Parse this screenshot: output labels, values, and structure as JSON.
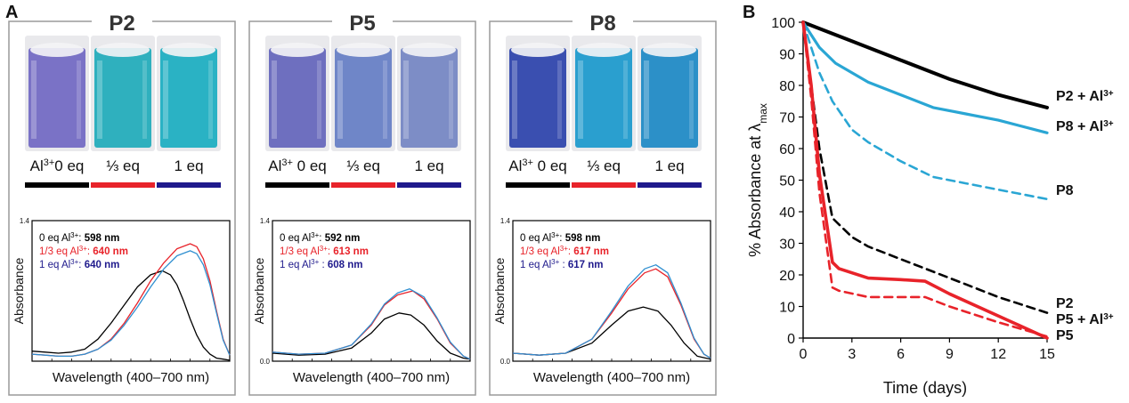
{
  "panel_a": {
    "label": "A",
    "groups": [
      {
        "name": "P2",
        "conditions": [
          {
            "label_pre": "Al",
            "label_sup": "3+",
            "label_post": "0 eq",
            "color": "#000000"
          },
          {
            "label_pre": "⅓ eq",
            "label_sup": "",
            "label_post": "",
            "color": "#e8232a"
          },
          {
            "label_pre": "1 eq",
            "label_sup": "",
            "label_post": "",
            "color": "#1f1a8c"
          }
        ],
        "cuvette_colors": [
          "#7a72c6",
          "#2fb0be",
          "#2ab2c4"
        ],
        "legend": [
          {
            "prefix": "0   eq Al",
            "sup": "3+",
            "sep": ": ",
            "value": "598 nm",
            "color": "#000000"
          },
          {
            "prefix": "1/3 eq Al",
            "sup": "3+",
            "sep": ": ",
            "value": "640 nm",
            "color": "#e8232a"
          },
          {
            "prefix": "1   eq Al",
            "sup": "3+",
            "sep": ": ",
            "value": "640 nm",
            "color": "#1f1a8c"
          }
        ]
      },
      {
        "name": "P5",
        "conditions": [
          {
            "label_pre": "Al",
            "label_sup": "3+",
            "label_post": " 0 eq",
            "color": "#000000"
          },
          {
            "label_pre": "⅓ eq",
            "label_sup": "",
            "label_post": "",
            "color": "#e8232a"
          },
          {
            "label_pre": "1 eq",
            "label_sup": "",
            "label_post": "",
            "color": "#1f1a8c"
          }
        ],
        "cuvette_colors": [
          "#6e6fbf",
          "#6f86c8",
          "#7d8dc6"
        ],
        "legend": [
          {
            "prefix": "0   eq Al",
            "sup": "3+",
            "sep": ": ",
            "value": "592 nm",
            "color": "#000000"
          },
          {
            "prefix": "1/3 eq Al",
            "sup": "3+",
            "sep": ": ",
            "value": "613 nm",
            "color": "#e8232a"
          },
          {
            "prefix": "1   eq Al",
            "sup": "3+",
            "sep": " : ",
            "value": "608 nm",
            "color": "#1f1a8c"
          }
        ]
      },
      {
        "name": "P8",
        "conditions": [
          {
            "label_pre": "Al",
            "label_sup": "3+",
            "label_post": " 0 eq",
            "color": "#000000"
          },
          {
            "label_pre": "⅓ eq",
            "label_sup": "",
            "label_post": "",
            "color": "#e8232a"
          },
          {
            "label_pre": "1 eq",
            "label_sup": "",
            "label_post": "",
            "color": "#1f1a8c"
          }
        ],
        "cuvette_colors": [
          "#3a4fb0",
          "#2a9fcf",
          "#2c90c8"
        ],
        "legend": [
          {
            "prefix": "0   eq Al",
            "sup": "3+",
            "sep": ": ",
            "value": "598 nm",
            "color": "#000000"
          },
          {
            "prefix": "1/3 eq Al",
            "sup": "3+",
            "sep": ": ",
            "value": "617 nm",
            "color": "#e8232a"
          },
          {
            "prefix": "1  eq Al",
            "sup": "3+",
            "sep": " : ",
            "value": "617 nm",
            "color": "#1f1a8c"
          }
        ]
      }
    ]
  },
  "panel_b": {
    "label": "B",
    "ylabel_pre": "% Absorbance at λ",
    "ylabel_sub": "max",
    "xlabel": "Time (days)"
  },
  "chart_data": [
    {
      "type": "line",
      "id": "P2",
      "xlabel": "Wavelength (400–700 nm)",
      "ylabel": "Absorbance",
      "xlim": [
        400,
        700
      ],
      "ylim": [
        0.0,
        1.4
      ],
      "yticks": [
        "1.4"
      ],
      "series": [
        {
          "color": "#000000",
          "x": [
            400,
            420,
            440,
            460,
            480,
            500,
            520,
            540,
            560,
            580,
            598,
            610,
            620,
            630,
            640,
            650,
            660,
            670,
            680,
            690,
            700
          ],
          "y": [
            0.1,
            0.09,
            0.08,
            0.09,
            0.12,
            0.22,
            0.38,
            0.56,
            0.74,
            0.86,
            0.9,
            0.86,
            0.76,
            0.6,
            0.42,
            0.26,
            0.14,
            0.07,
            0.03,
            0.02,
            0.01
          ]
        },
        {
          "color": "#e8232a",
          "x": [
            400,
            420,
            440,
            460,
            480,
            500,
            520,
            540,
            560,
            580,
            600,
            620,
            640,
            650,
            660,
            670,
            680,
            690,
            700
          ],
          "y": [
            0.07,
            0.06,
            0.05,
            0.05,
            0.07,
            0.12,
            0.22,
            0.38,
            0.58,
            0.8,
            0.98,
            1.12,
            1.17,
            1.14,
            1.02,
            0.8,
            0.5,
            0.22,
            0.06
          ]
        },
        {
          "color": "#2f8fd0",
          "x": [
            400,
            420,
            440,
            460,
            480,
            500,
            520,
            540,
            560,
            580,
            600,
            620,
            640,
            650,
            660,
            670,
            680,
            690,
            700
          ],
          "y": [
            0.07,
            0.06,
            0.05,
            0.05,
            0.07,
            0.12,
            0.21,
            0.36,
            0.54,
            0.74,
            0.92,
            1.05,
            1.1,
            1.07,
            0.96,
            0.76,
            0.48,
            0.21,
            0.06
          ]
        }
      ]
    },
    {
      "type": "line",
      "id": "P5",
      "xlabel": "Wavelength (400–700 nm)",
      "ylabel": "Absorbance",
      "xlim": [
        400,
        700
      ],
      "ylim": [
        0.0,
        1.4
      ],
      "yticks": [
        "1.4",
        "0.0"
      ],
      "series": [
        {
          "color": "#000000",
          "x": [
            400,
            440,
            480,
            520,
            550,
            570,
            592,
            610,
            630,
            650,
            670,
            690,
            700
          ],
          "y": [
            0.08,
            0.06,
            0.07,
            0.13,
            0.28,
            0.42,
            0.48,
            0.46,
            0.36,
            0.2,
            0.08,
            0.03,
            0.02
          ]
        },
        {
          "color": "#e8232a",
          "x": [
            400,
            440,
            480,
            520,
            550,
            570,
            590,
            613,
            630,
            650,
            670,
            690,
            700
          ],
          "y": [
            0.09,
            0.07,
            0.08,
            0.16,
            0.36,
            0.56,
            0.66,
            0.7,
            0.62,
            0.42,
            0.18,
            0.05,
            0.02
          ]
        },
        {
          "color": "#2f8fd0",
          "x": [
            400,
            440,
            480,
            520,
            550,
            570,
            590,
            608,
            630,
            650,
            670,
            690,
            700
          ],
          "y": [
            0.09,
            0.07,
            0.08,
            0.16,
            0.37,
            0.57,
            0.68,
            0.72,
            0.64,
            0.43,
            0.19,
            0.05,
            0.02
          ]
        }
      ]
    },
    {
      "type": "line",
      "id": "P8",
      "xlabel": "Wavelength (400–700 nm)",
      "ylabel": "Absorbance",
      "xlim": [
        400,
        700
      ],
      "ylim": [
        0.0,
        1.4
      ],
      "yticks": [
        "1.4",
        "0.0"
      ],
      "series": [
        {
          "color": "#000000",
          "x": [
            400,
            440,
            480,
            520,
            550,
            575,
            598,
            620,
            640,
            660,
            680,
            700
          ],
          "y": [
            0.08,
            0.06,
            0.08,
            0.18,
            0.36,
            0.5,
            0.54,
            0.5,
            0.36,
            0.18,
            0.05,
            0.02
          ]
        },
        {
          "color": "#e8232a",
          "x": [
            400,
            440,
            480,
            520,
            550,
            575,
            600,
            617,
            635,
            655,
            675,
            690,
            700
          ],
          "y": [
            0.08,
            0.06,
            0.08,
            0.22,
            0.48,
            0.72,
            0.88,
            0.92,
            0.84,
            0.56,
            0.22,
            0.07,
            0.03
          ]
        },
        {
          "color": "#2f8fd0",
          "x": [
            400,
            440,
            480,
            520,
            550,
            575,
            600,
            617,
            635,
            655,
            675,
            690,
            700
          ],
          "y": [
            0.08,
            0.06,
            0.08,
            0.22,
            0.5,
            0.75,
            0.92,
            0.96,
            0.88,
            0.58,
            0.23,
            0.07,
            0.03
          ]
        }
      ]
    },
    {
      "type": "line",
      "id": "B",
      "xlabel": "Time (days)",
      "ylabel": "% Absorbance at λmax",
      "xlim": [
        0,
        15
      ],
      "ylim": [
        0,
        100
      ],
      "xticks": [
        0,
        3,
        6,
        9,
        12,
        15
      ],
      "yticks": [
        0,
        10,
        20,
        30,
        40,
        50,
        60,
        70,
        80,
        90,
        100
      ],
      "series": [
        {
          "name": "P2 + Al3+",
          "color": "#000000",
          "dash": false,
          "width": 4,
          "x": [
            0,
            1,
            3,
            6,
            9,
            12,
            15
          ],
          "y": [
            100,
            98,
            94,
            88,
            82,
            77,
            73
          ]
        },
        {
          "name": "P8 + Al3+",
          "color": "#2aa6d4",
          "dash": false,
          "width": 3.2,
          "x": [
            0,
            0.5,
            1,
            2,
            4,
            6,
            8,
            10,
            12,
            15
          ],
          "y": [
            100,
            96,
            92,
            87,
            81,
            77,
            73,
            71,
            69,
            65
          ]
        },
        {
          "name": "P8",
          "color": "#2aa6d4",
          "dash": true,
          "width": 2.6,
          "x": [
            0,
            0.5,
            1,
            1.8,
            3,
            4,
            6,
            8,
            10,
            12,
            15
          ],
          "y": [
            100,
            92,
            84,
            75,
            66,
            62,
            56,
            51,
            49,
            47,
            44
          ]
        },
        {
          "name": "P2",
          "color": "#000000",
          "dash": true,
          "width": 2.6,
          "x": [
            0,
            0.5,
            1,
            1.8,
            3,
            4,
            6,
            8,
            10,
            12,
            15
          ],
          "y": [
            100,
            80,
            60,
            38,
            32,
            29,
            25,
            21,
            17,
            13,
            8
          ]
        },
        {
          "name": "P5 + Al3+",
          "color": "#e8232a",
          "dash": false,
          "width": 3.6,
          "x": [
            0,
            0.5,
            1,
            1.8,
            2.2,
            4,
            6,
            7.5,
            9,
            12,
            15
          ],
          "y": [
            100,
            80,
            52,
            24,
            22,
            19,
            18.5,
            18,
            14,
            7,
            0
          ]
        },
        {
          "name": "P5",
          "color": "#e8232a",
          "dash": true,
          "width": 2.6,
          "x": [
            0,
            0.5,
            1,
            1.8,
            2.2,
            4,
            6,
            7.5,
            9,
            12,
            15
          ],
          "y": [
            100,
            76,
            46,
            16,
            15,
            13,
            13,
            13,
            10,
            5,
            0.5
          ]
        }
      ]
    }
  ]
}
